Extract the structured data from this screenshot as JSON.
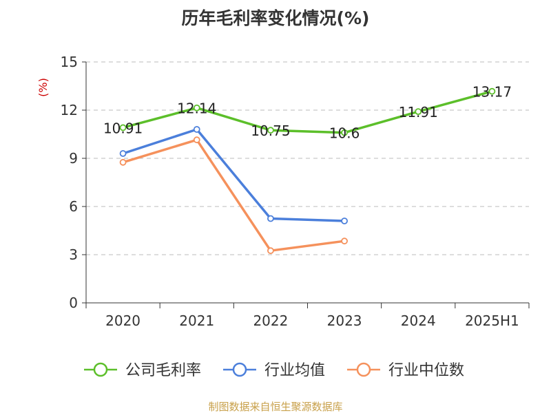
{
  "chart_data": {
    "type": "line",
    "title": "历年毛利率变化情况(%)",
    "ylabel": "(%)",
    "categories": [
      "2020",
      "2021",
      "2022",
      "2023",
      "2024",
      "2025H1"
    ],
    "ylim": [
      0,
      15
    ],
    "yticks": [
      "0",
      "3",
      "6",
      "9",
      "12",
      "15"
    ],
    "grid": true,
    "legend_position": "bottom",
    "series": [
      {
        "name": "公司毛利率",
        "color": "#5cbf2a",
        "values": [
          10.91,
          12.14,
          10.75,
          10.6,
          11.91,
          13.17
        ],
        "labels": [
          "10.91",
          "12.14",
          "10.75",
          "10.6",
          "11.91",
          "13.17"
        ]
      },
      {
        "name": "行业均值",
        "color": "#4b7fdb",
        "values": [
          9.3,
          10.8,
          5.25,
          5.1,
          null,
          null
        ]
      },
      {
        "name": "行业中位数",
        "color": "#f5915c",
        "values": [
          8.75,
          10.15,
          3.25,
          3.85,
          null,
          null
        ]
      }
    ]
  },
  "source": "制图数据来自恒生聚源数据库"
}
